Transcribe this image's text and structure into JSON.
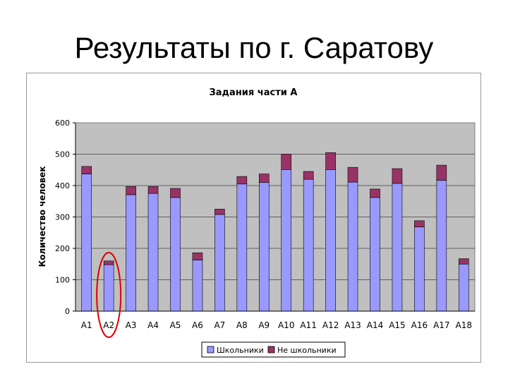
{
  "slide": {
    "title": "Результаты по г. Саратову"
  },
  "chart_data": {
    "type": "bar",
    "stacked": true,
    "title": "Задания части А",
    "xlabel": "",
    "ylabel": "Количество человек",
    "ylim": [
      0,
      600
    ],
    "yticks": [
      0,
      100,
      200,
      300,
      400,
      500,
      600
    ],
    "grid": true,
    "legend_position": "bottom",
    "categories": [
      "A1",
      "A2",
      "A3",
      "A4",
      "A5",
      "A6",
      "A7",
      "A8",
      "A9",
      "A10",
      "A11",
      "A12",
      "A13",
      "A14",
      "A15",
      "A16",
      "A17",
      "A18"
    ],
    "series": [
      {
        "name": "Школьники",
        "color": "#9999ff",
        "values": [
          437,
          148,
          371,
          375,
          362,
          163,
          308,
          405,
          410,
          451,
          420,
          451,
          411,
          362,
          407,
          268,
          417,
          150
        ]
      },
      {
        "name": "Не школьники",
        "color": "#993366",
        "values": [
          24,
          12,
          26,
          22,
          29,
          23,
          17,
          24,
          27,
          49,
          25,
          54,
          47,
          27,
          47,
          20,
          48,
          17
        ]
      }
    ],
    "annotation": {
      "category": "A2",
      "shape": "ellipse",
      "color": "#e00000"
    }
  }
}
